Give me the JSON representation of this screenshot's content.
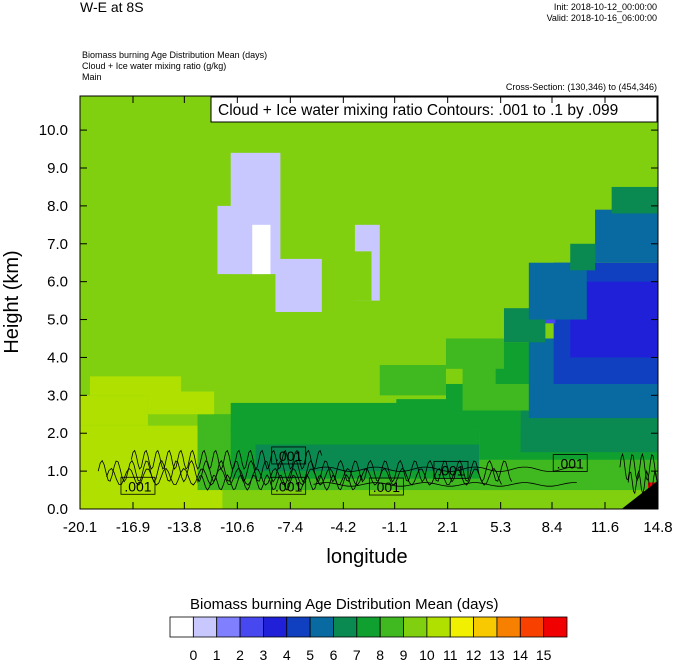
{
  "header": {
    "title": "W-E at 8S",
    "init": "Init: 2018-10-12_00:00:00",
    "valid": "Valid: 2018-10-16_06:00:00",
    "field1": "Biomass burning Age Distribution Mean    (days)",
    "field2": "Cloud + Ice water mixing ratio    (g/kg)",
    "field3": "Main",
    "cross_section": "Cross-Section: (130,346) to (454,346)"
  },
  "chart_data": {
    "type": "heatmap",
    "title": "W-E at 8S",
    "contour_label": "Cloud + Ice water mixing ratio Contours: .001 to .1 by .099",
    "xlabel": "longitude",
    "ylabel": "Height (km)",
    "x_ticks": [
      "-20.1",
      "-16.9",
      "-13.8",
      "-10.6",
      "-7.4",
      "-4.2",
      "-1.1",
      "2.1",
      "5.3",
      "8.4",
      "11.6",
      "14.8"
    ],
    "x_values": [
      -20.1,
      -16.9,
      -13.8,
      -10.6,
      -7.4,
      -4.2,
      -1.1,
      2.1,
      5.3,
      8.4,
      11.6,
      14.8
    ],
    "y_ticks": [
      "0.0",
      "1.0",
      "2.0",
      "3.0",
      "4.0",
      "5.0",
      "6.0",
      "7.0",
      "8.0",
      "9.0",
      "10.0"
    ],
    "xlim": [
      -20.1,
      14.8
    ],
    "ylim": [
      0,
      10.9
    ],
    "contour_levels": [
      0.001,
      0.1
    ],
    "contour_labels": [
      {
        "text": ".001",
        "x": -7.5,
        "y": 1.4
      },
      {
        "text": ".001",
        "x": -16.6,
        "y": 0.6
      },
      {
        "text": ".001",
        "x": -7.5,
        "y": 0.6
      },
      {
        "text": ".001",
        "x": -1.6,
        "y": 0.58
      },
      {
        "text": ".001",
        "x": 2.3,
        "y": 1.02
      },
      {
        "text": ".001",
        "x": 9.5,
        "y": 1.2
      }
    ],
    "colorbar": {
      "title": "Biomass burning Age Distribution Mean  (days)",
      "labels": [
        "0",
        "1",
        "2",
        "3",
        "4",
        "5",
        "6",
        "7",
        "8",
        "9",
        "10",
        "11",
        "12",
        "13",
        "14",
        "15"
      ],
      "colors": [
        "#ffffff",
        "#c8c8ff",
        "#8080ff",
        "#4848f0",
        "#2020d8",
        "#1040c0",
        "#086aa0",
        "#0a8a50",
        "#10a030",
        "#40b820",
        "#80d010",
        "#b0e000",
        "#f0f000",
        "#f8c800",
        "#f88000",
        "#f84000",
        "#f00000"
      ]
    },
    "cells": [
      {
        "x": [
          -20.1,
          14.8
        ],
        "y": [
          0,
          10.9
        ],
        "level": 10
      },
      {
        "x": [
          -20.1,
          -11.5
        ],
        "y": [
          0,
          0.5
        ],
        "level": 11
      },
      {
        "x": [
          -20.1,
          -13.0
        ],
        "y": [
          0.5,
          2.2
        ],
        "level": 11
      },
      {
        "x": [
          -13.0,
          6.0
        ],
        "y": [
          0.5,
          2.5
        ],
        "level": 9
      },
      {
        "x": [
          -11.0,
          6.5
        ],
        "y": [
          0.8,
          2.1
        ],
        "level": 8
      },
      {
        "x": [
          -9.5,
          6.0
        ],
        "y": [
          1.0,
          1.7
        ],
        "level": 7
      },
      {
        "x": [
          -13.0,
          -9.0
        ],
        "y": [
          2.1,
          2.5
        ],
        "level": 9
      },
      {
        "x": [
          -11.0,
          2.0
        ],
        "y": [
          2.0,
          2.8
        ],
        "level": 8
      },
      {
        "x": [
          -1.0,
          4.0
        ],
        "y": [
          2.2,
          2.9
        ],
        "level": 8
      },
      {
        "x": [
          -20.1,
          -16.0
        ],
        "y": [
          2.2,
          3.0
        ],
        "level": 11
      },
      {
        "x": [
          -16.0,
          -12.0
        ],
        "y": [
          2.5,
          3.1
        ],
        "level": 11
      },
      {
        "x": [
          -19.5,
          -14.0
        ],
        "y": [
          3.0,
          3.5
        ],
        "level": 11
      },
      {
        "x": [
          4.0,
          14.8
        ],
        "y": [
          0.5,
          2.1
        ],
        "level": 9
      },
      {
        "x": [
          4.0,
          14.8
        ],
        "y": [
          1.3,
          2.2
        ],
        "level": 8
      },
      {
        "x": [
          6.5,
          14.8
        ],
        "y": [
          1.5,
          2.8
        ],
        "level": 7
      },
      {
        "x": [
          2.0,
          6.5
        ],
        "y": [
          2.1,
          3.3
        ],
        "level": 8
      },
      {
        "x": [
          3.0,
          7.5
        ],
        "y": [
          2.6,
          3.8
        ],
        "level": 9
      },
      {
        "x": [
          5.0,
          8.0
        ],
        "y": [
          3.3,
          4.4
        ],
        "level": 8
      },
      {
        "x": [
          7.0,
          14.8
        ],
        "y": [
          2.4,
          4.5
        ],
        "level": 6
      },
      {
        "x": [
          8.5,
          14.8
        ],
        "y": [
          3.3,
          6.5
        ],
        "level": 5
      },
      {
        "x": [
          9.5,
          14.8
        ],
        "y": [
          4.0,
          6.0
        ],
        "level": 4
      },
      {
        "x": [
          7.7,
          8.6
        ],
        "y": [
          4.9,
          6.1
        ],
        "level": 3
      },
      {
        "x": [
          5.5,
          8.0
        ],
        "y": [
          4.4,
          5.3
        ],
        "level": 7
      },
      {
        "x": [
          7.0,
          10.5
        ],
        "y": [
          5.0,
          6.5
        ],
        "level": 6
      },
      {
        "x": [
          11.0,
          14.8
        ],
        "y": [
          6.5,
          7.9
        ],
        "level": 6
      },
      {
        "x": [
          9.5,
          11.0
        ],
        "y": [
          6.3,
          7.0
        ],
        "level": 7
      },
      {
        "x": [
          12.0,
          14.8
        ],
        "y": [
          7.8,
          8.5
        ],
        "level": 7
      },
      {
        "x": [
          -2.0,
          2.0
        ],
        "y": [
          3.0,
          3.8
        ],
        "level": 9
      },
      {
        "x": [
          2.0,
          5.5
        ],
        "y": [
          3.7,
          4.5
        ],
        "level": 9
      },
      {
        "x": [
          -9.0,
          -2.0
        ],
        "y": [
          4.5,
          8.7
        ],
        "level": 10
      },
      {
        "x": [
          -11.0,
          -8.0
        ],
        "y": [
          6.2,
          9.4
        ],
        "level": 1
      },
      {
        "x": [
          -11.8,
          -9.0
        ],
        "y": [
          6.2,
          8.0
        ],
        "level": 1
      },
      {
        "x": [
          -8.3,
          -5.5
        ],
        "y": [
          5.2,
          6.6
        ],
        "level": 1
      },
      {
        "x": [
          -3.5,
          -2.0
        ],
        "y": [
          5.5,
          7.5
        ],
        "level": 1
      },
      {
        "x": [
          -4.0,
          -2.5
        ],
        "y": [
          5.5,
          6.8
        ],
        "level": 10
      },
      {
        "x": [
          -9.7,
          -8.6
        ],
        "y": [
          6.2,
          7.5
        ],
        "level": 0
      },
      {
        "x": [
          14.2,
          14.8
        ],
        "y": [
          0,
          0.7
        ],
        "level": 16
      }
    ]
  }
}
